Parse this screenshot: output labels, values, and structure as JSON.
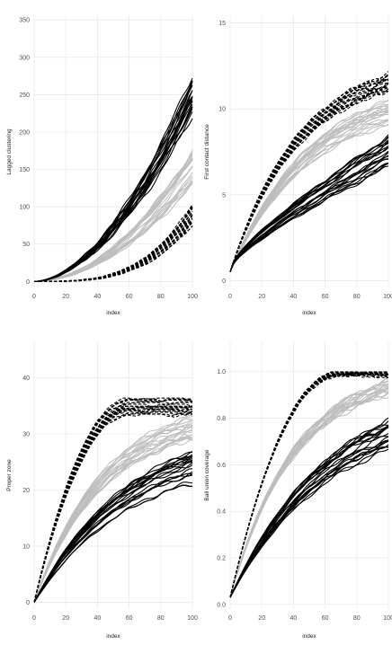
{
  "figure": {
    "style": "faceted-line-panels",
    "line_colors": {
      "group_solid_black": "#000000",
      "group_gray": "#bdbdbd",
      "group_dashed_black": "#000000"
    },
    "gridline_color": "#e6e6e6"
  },
  "chart_data": [
    {
      "type": "line",
      "title": "",
      "xlabel": "index",
      "ylabel": "Lagged clustering",
      "xlim": [
        0,
        100
      ],
      "ylim": [
        -8,
        355
      ],
      "xticks": [
        "0",
        "20",
        "40",
        "60",
        "80",
        "100"
      ],
      "yticks": [
        "0",
        "50",
        "100",
        "150",
        "200",
        "250",
        "300",
        "350"
      ],
      "xtick_values": [
        0,
        20,
        40,
        60,
        80,
        100
      ],
      "ytick_values": [
        0,
        50,
        100,
        150,
        200,
        250,
        300,
        350
      ],
      "grid": true,
      "legend": "none",
      "series_groups": [
        {
          "style": "solid-black",
          "count": 20,
          "shape": "power",
          "x": [
            0,
            100
          ],
          "y_start": 0,
          "y_end_range": [
            220,
            290
          ],
          "exponent": 1.8
        },
        {
          "style": "gray",
          "count": 20,
          "shape": "power",
          "x": [
            0,
            100
          ],
          "y_start": 0,
          "y_end_range": [
            120,
            175
          ],
          "exponent": 1.9
        },
        {
          "style": "dashed-black",
          "count": 20,
          "shape": "power",
          "x": [
            0,
            100
          ],
          "y_start": 0,
          "y_end_range": [
            75,
            105
          ],
          "exponent": 3.3
        }
      ]
    },
    {
      "type": "line",
      "title": "",
      "xlabel": "index",
      "ylabel": "First contact distance",
      "xlim": [
        0,
        100
      ],
      "ylim": [
        -0.4,
        15.4
      ],
      "xticks": [
        "0",
        "20",
        "40",
        "60",
        "80",
        "100"
      ],
      "yticks": [
        "0",
        "5",
        "10",
        "15"
      ],
      "xtick_values": [
        0,
        20,
        40,
        60,
        80,
        100
      ],
      "ytick_values": [
        0,
        5,
        10,
        15
      ],
      "grid": true,
      "legend": "none",
      "series_groups": [
        {
          "style": "solid-black",
          "count": 20,
          "shape": "sqrt",
          "x": [
            0,
            100
          ],
          "y_start": 0.5,
          "y_end_range": [
            6.6,
            8.4
          ]
        },
        {
          "style": "gray",
          "count": 20,
          "shape": "saturating",
          "x": [
            0,
            100
          ],
          "y_start": 0.5,
          "y_end_range": [
            8.6,
            10.5
          ],
          "rate": 2.0
        },
        {
          "style": "dashed-black",
          "count": 20,
          "shape": "saturating",
          "x": [
            0,
            100
          ],
          "y_start": 0.5,
          "y_end_range": [
            11.0,
            12.0
          ],
          "rate": 2.3
        }
      ]
    },
    {
      "type": "line",
      "title": "",
      "xlabel": "index",
      "ylabel": "Proper zone",
      "xlim": [
        0,
        100
      ],
      "ylim": [
        -1.2,
        46.5
      ],
      "xticks": [
        "0",
        "20",
        "40",
        "60",
        "80",
        "100"
      ],
      "yticks": [
        "0",
        "10",
        "20",
        "30",
        "40"
      ],
      "xtick_values": [
        0,
        20,
        40,
        60,
        80,
        100
      ],
      "ytick_values": [
        0,
        10,
        20,
        30,
        40
      ],
      "grid": true,
      "legend": "none",
      "series_groups": [
        {
          "style": "solid-black",
          "count": 20,
          "shape": "saturating",
          "x": [
            0,
            100
          ],
          "y_start": 0,
          "y_end_range": [
            21,
            27
          ],
          "rate": 1.7
        },
        {
          "style": "gray",
          "count": 20,
          "shape": "saturating",
          "x": [
            0,
            100
          ],
          "y_start": 0,
          "y_end_range": [
            29,
            33.5
          ],
          "rate": 2.3
        },
        {
          "style": "dashed-black",
          "count": 20,
          "shape": "plateau",
          "x": [
            0,
            100
          ],
          "y_start": 0,
          "y_end_range": [
            33.5,
            36.5
          ],
          "plateau_x": 62
        }
      ]
    },
    {
      "type": "line",
      "title": "",
      "xlabel": "index",
      "ylabel": "Ball union coverage",
      "xlim": [
        0,
        100
      ],
      "ylim": [
        -0.02,
        1.13
      ],
      "xticks": [
        "0",
        "20",
        "40",
        "60",
        "80",
        "100"
      ],
      "yticks": [
        "0.0",
        "0.2",
        "0.4",
        "0.6",
        "0.8",
        "1.0"
      ],
      "xtick_values": [
        0,
        20,
        40,
        60,
        80,
        100
      ],
      "ytick_values": [
        0,
        0.2,
        0.4,
        0.6,
        0.8,
        1.0
      ],
      "grid": true,
      "legend": "none",
      "series_groups": [
        {
          "style": "solid-black",
          "count": 20,
          "shape": "saturating",
          "x": [
            0,
            100
          ],
          "y_start": 0.03,
          "y_end_range": [
            0.66,
            0.8
          ],
          "rate": 1.6
        },
        {
          "style": "gray",
          "count": 20,
          "shape": "saturating",
          "x": [
            0,
            100
          ],
          "y_start": 0.03,
          "y_end_range": [
            0.9,
            0.96
          ],
          "rate": 2.5
        },
        {
          "style": "dashed-black",
          "count": 20,
          "shape": "plateau",
          "x": [
            0,
            100
          ],
          "y_start": 0.03,
          "y_end_range": [
            0.985,
            1.0
          ],
          "plateau_x": 70
        }
      ]
    }
  ]
}
